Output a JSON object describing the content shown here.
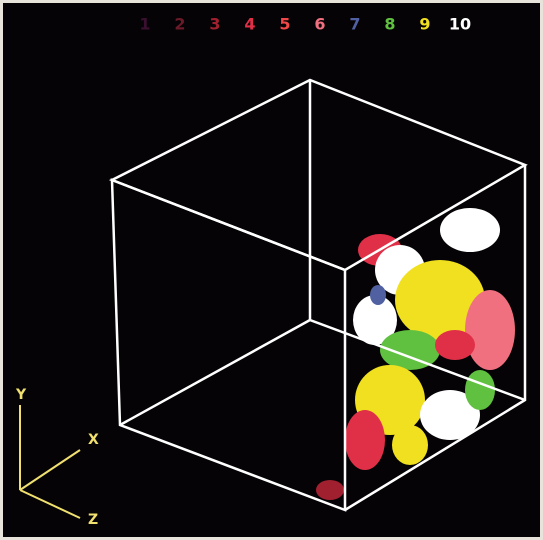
{
  "legend": {
    "labels": [
      "1",
      "2",
      "3",
      "4",
      "5",
      "6",
      "7",
      "8",
      "9",
      "10"
    ],
    "colors": [
      "#3a1030",
      "#6a1a28",
      "#a02030",
      "#e03048",
      "#f04848",
      "#f07080",
      "#5060a0",
      "#60c040",
      "#f0e020",
      "#ffffff"
    ]
  },
  "axes": {
    "y": "Y",
    "x": "X",
    "z": "Z"
  }
}
